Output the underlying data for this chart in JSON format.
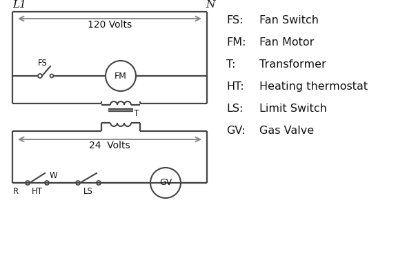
{
  "bg_color": "#ffffff",
  "line_color": "#444444",
  "arrow_color": "#888888",
  "text_color": "#111111",
  "legend": {
    "FS": "Fan Switch",
    "FM": "Fan Motor",
    "T": "Transformer",
    "HT": "Heating thermostat",
    "LS": "Limit Switch",
    "GV": "Gas Valve"
  },
  "L1_label": "L1",
  "N_label": "N",
  "volts_120": "120 Volts",
  "volts_24": "24  Volts",
  "R_label": "R",
  "W_label": "W",
  "HT_label": "HT",
  "LS_label": "LS",
  "T_label": "T",
  "FS_label": "FS",
  "FM_label": "FM",
  "GV_label": "GV"
}
